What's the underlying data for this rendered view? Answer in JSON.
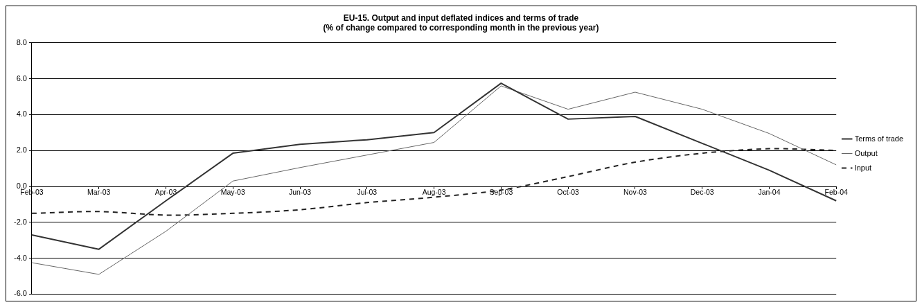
{
  "chart_data": {
    "type": "line",
    "title": "EU-15. Output and input deflated indices and terms of trade",
    "subtitle": "(% of change compared to corresponding month in the previous year)",
    "categories": [
      "Feb-03",
      "Mar-03",
      "Apr-03",
      "May-03",
      "Jun-03",
      "Jul-03",
      "Aug-03",
      "Sep-03",
      "Oct-03",
      "Nov-03",
      "Dec-03",
      "Jan-04",
      "Feb-04"
    ],
    "series": [
      {
        "name": "Terms of trade",
        "color": "#333333",
        "values": [
          -2.7,
          -3.5,
          -0.8,
          1.85,
          2.35,
          2.6,
          3.0,
          5.75,
          3.75,
          3.9,
          2.4,
          0.9,
          -0.8
        ]
      },
      {
        "name": "Output",
        "color": "#666666",
        "values": [
          -4.25,
          -4.9,
          -2.5,
          0.3,
          1.05,
          1.75,
          2.45,
          5.6,
          4.3,
          5.25,
          4.3,
          2.95,
          1.2
        ]
      },
      {
        "name": "Input",
        "color": "#222222",
        "line_style": "dashed",
        "values": [
          -1.5,
          -1.4,
          -1.6,
          -1.5,
          -1.3,
          -0.9,
          -0.6,
          -0.2,
          0.55,
          1.35,
          1.85,
          2.1,
          2.0
        ]
      }
    ],
    "ylim": [
      -6,
      8
    ],
    "yticks": [
      {
        "value": -6,
        "label": "-6.0"
      },
      {
        "value": -4,
        "label": "-4.0"
      },
      {
        "value": -2,
        "label": "-2.0"
      },
      {
        "value": 0,
        "label": "0.0"
      },
      {
        "value": 2,
        "label": "2.0"
      },
      {
        "value": 4,
        "label": "4.0"
      },
      {
        "value": 6,
        "label": "6.0"
      },
      {
        "value": 8,
        "label": "8.0"
      }
    ],
    "grid": "y",
    "legend": "right",
    "marker": "none"
  }
}
